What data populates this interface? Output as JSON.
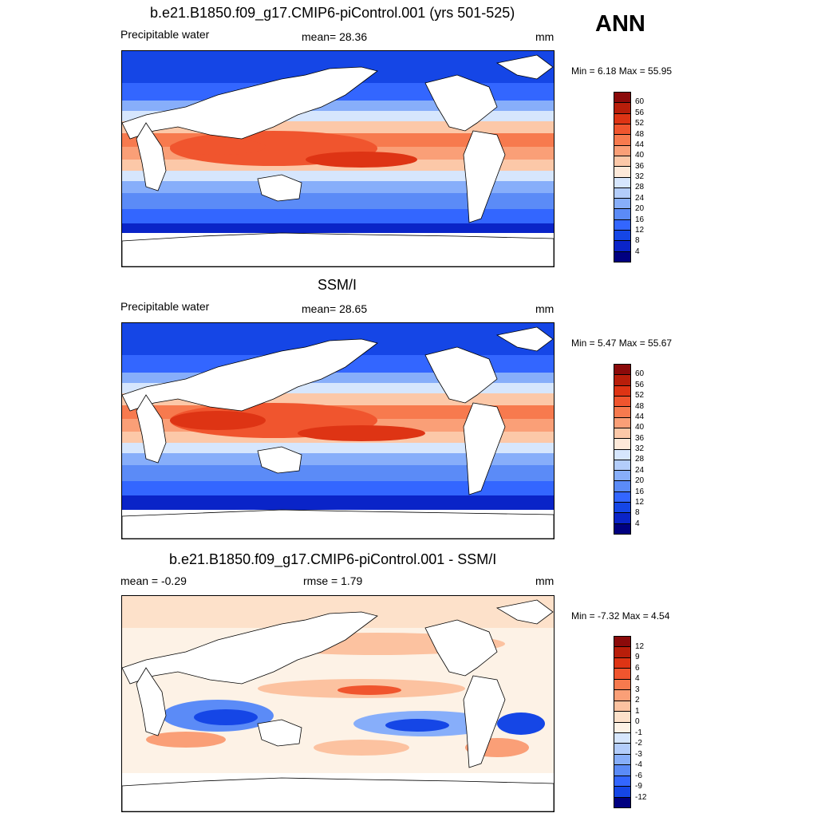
{
  "season": "ANN",
  "colors": {
    "abs_scale": [
      "#000080",
      "#0a24c8",
      "#1546e6",
      "#3366ff",
      "#5b8bf7",
      "#87aefa",
      "#b3cdfb",
      "#d6e6fd",
      "#fde9d9",
      "#fcc8a8",
      "#fa9f77",
      "#f77a4e",
      "#f0552e",
      "#de3414",
      "#b81e0a",
      "#8b0a0a"
    ],
    "diff_scale": [
      "#000080",
      "#0a24c8",
      "#1546e6",
      "#3366ff",
      "#5b8bf7",
      "#87aefa",
      "#b3cdfb",
      "#d6e6fd",
      "#fdf2e6",
      "#fde1ca",
      "#fcc2a0",
      "#fa9f77",
      "#f77a4e",
      "#f0552e",
      "#de3414",
      "#b81e0a",
      "#8b0a0a"
    ],
    "land": "#ffffff",
    "coast": "#000000"
  },
  "panels": [
    {
      "title": "b.e21.B1850.f09_g17.CMIP6-piControl.001 (yrs 501-525)",
      "left_label": "Precipitable water",
      "center_label": "mean=  28.36",
      "units": "mm",
      "minmax": "Min =   6.18 Max =  55.95",
      "colorbar_labels": [
        "60",
        "56",
        "52",
        "48",
        "44",
        "40",
        "36",
        "32",
        "28",
        "24",
        "20",
        "16",
        "12",
        "8",
        "4"
      ]
    },
    {
      "title": "SSM/I",
      "left_label": "Precipitable water",
      "center_label": "mean=  28.65",
      "units": "mm",
      "minmax": "Min =   5.47 Max =  55.67",
      "colorbar_labels": [
        "60",
        "56",
        "52",
        "48",
        "44",
        "40",
        "36",
        "32",
        "28",
        "24",
        "20",
        "16",
        "12",
        "8",
        "4"
      ]
    },
    {
      "title": "b.e21.B1850.f09_g17.CMIP6-piControl.001 - SSM/I",
      "left_label": "mean =  -0.29",
      "center_label": "rmse =   1.79",
      "units": "mm",
      "minmax": "Min =  -7.32 Max =   4.54",
      "colorbar_labels": [
        "12",
        "9",
        "6",
        "4",
        "3",
        "2",
        "1",
        "0",
        "-1",
        "-2",
        "-3",
        "-4",
        "-6",
        "-9",
        "-12"
      ]
    }
  ]
}
